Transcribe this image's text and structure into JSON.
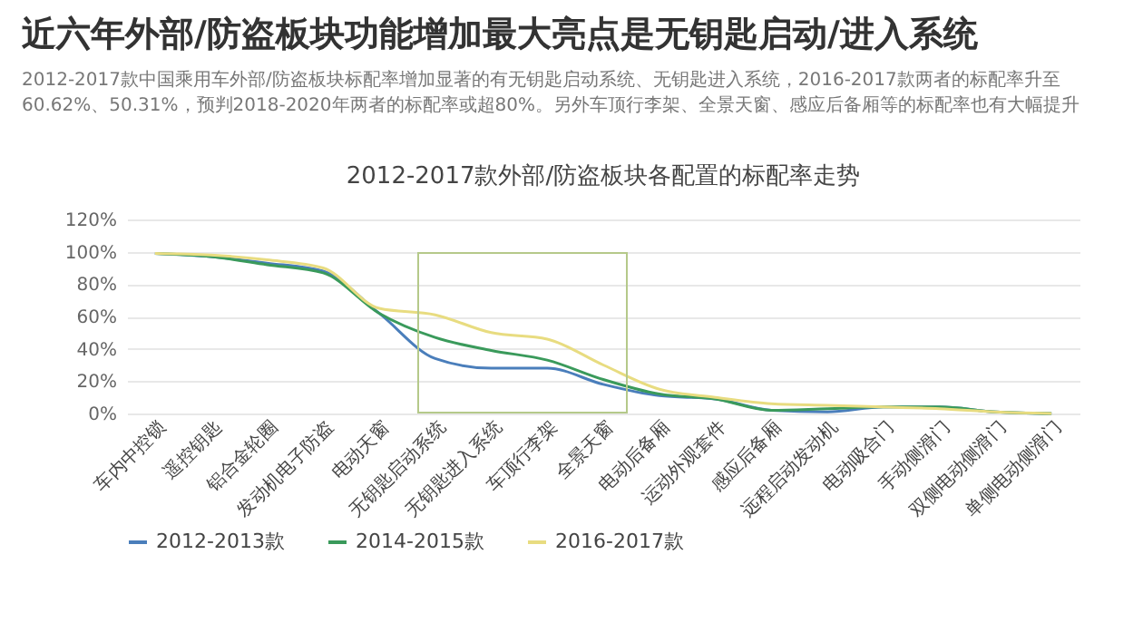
{
  "chart_data": {
    "type": "line",
    "title": "近六年外部/防盗板块功能增加最大亮点是无钥匙启动/进入系统",
    "subtitle": "2012-2017款中国乘用车外部/防盗板块标配率增加显著的有无钥匙启动系统、无钥匙进入系统，2016-2017款两者的标配率升至60.62%、50.31%，预判2018-2020年两者的标配率或超80%。另外车顶行李架、全景天窗、感应后备厢等的标配率也有大幅提升",
    "annotations": [
      "2012-2017款外部/防盗板块各配置的标配率走势"
    ],
    "categories": [
      "车内中控锁",
      "遥控钥匙",
      "铝合金轮圈",
      "发动机电子防盗",
      "电动天窗",
      "无钥匙启动系统",
      "无钥匙进入系统",
      "车顶行李架",
      "全景天窗",
      "电动后备厢",
      "运动外观套件",
      "感应后备厢",
      "远程启动发动机",
      "电动吸合门",
      "手动侧滑门",
      "双侧电动侧滑门",
      "单侧电动侧滑门"
    ],
    "series": [
      {
        "name": "2012-2013款",
        "color": "#4a7ebb",
        "values": [
          99,
          97,
          93,
          88,
          62,
          34,
          28,
          28,
          18,
          11,
          9,
          2,
          1,
          4,
          4,
          1,
          0
        ]
      },
      {
        "name": "2014-2015款",
        "color": "#3a9a5b",
        "values": [
          99,
          97,
          92,
          87,
          62,
          47,
          39,
          33,
          21,
          12,
          9,
          2,
          3,
          4,
          4,
          1,
          0
        ]
      },
      {
        "name": "2016-2017款",
        "color": "#e8dc80",
        "values": [
          99,
          98,
          95,
          90,
          65,
          61,
          50,
          46,
          30,
          15,
          10,
          6,
          5,
          4,
          3,
          1,
          0
        ]
      }
    ],
    "ylim": [
      0,
      120
    ],
    "yticks": [
      {
        "value": 0,
        "label": "0%"
      },
      {
        "value": 20,
        "label": "20%"
      },
      {
        "value": 40,
        "label": "40%"
      },
      {
        "value": 60,
        "label": "60%"
      },
      {
        "value": 80,
        "label": "80%"
      },
      {
        "value": 100,
        "label": "100%"
      },
      {
        "value": 120,
        "label": "120%"
      }
    ],
    "grid": "y",
    "legend": "bottom",
    "marker": "none",
    "line_style": "solid"
  }
}
